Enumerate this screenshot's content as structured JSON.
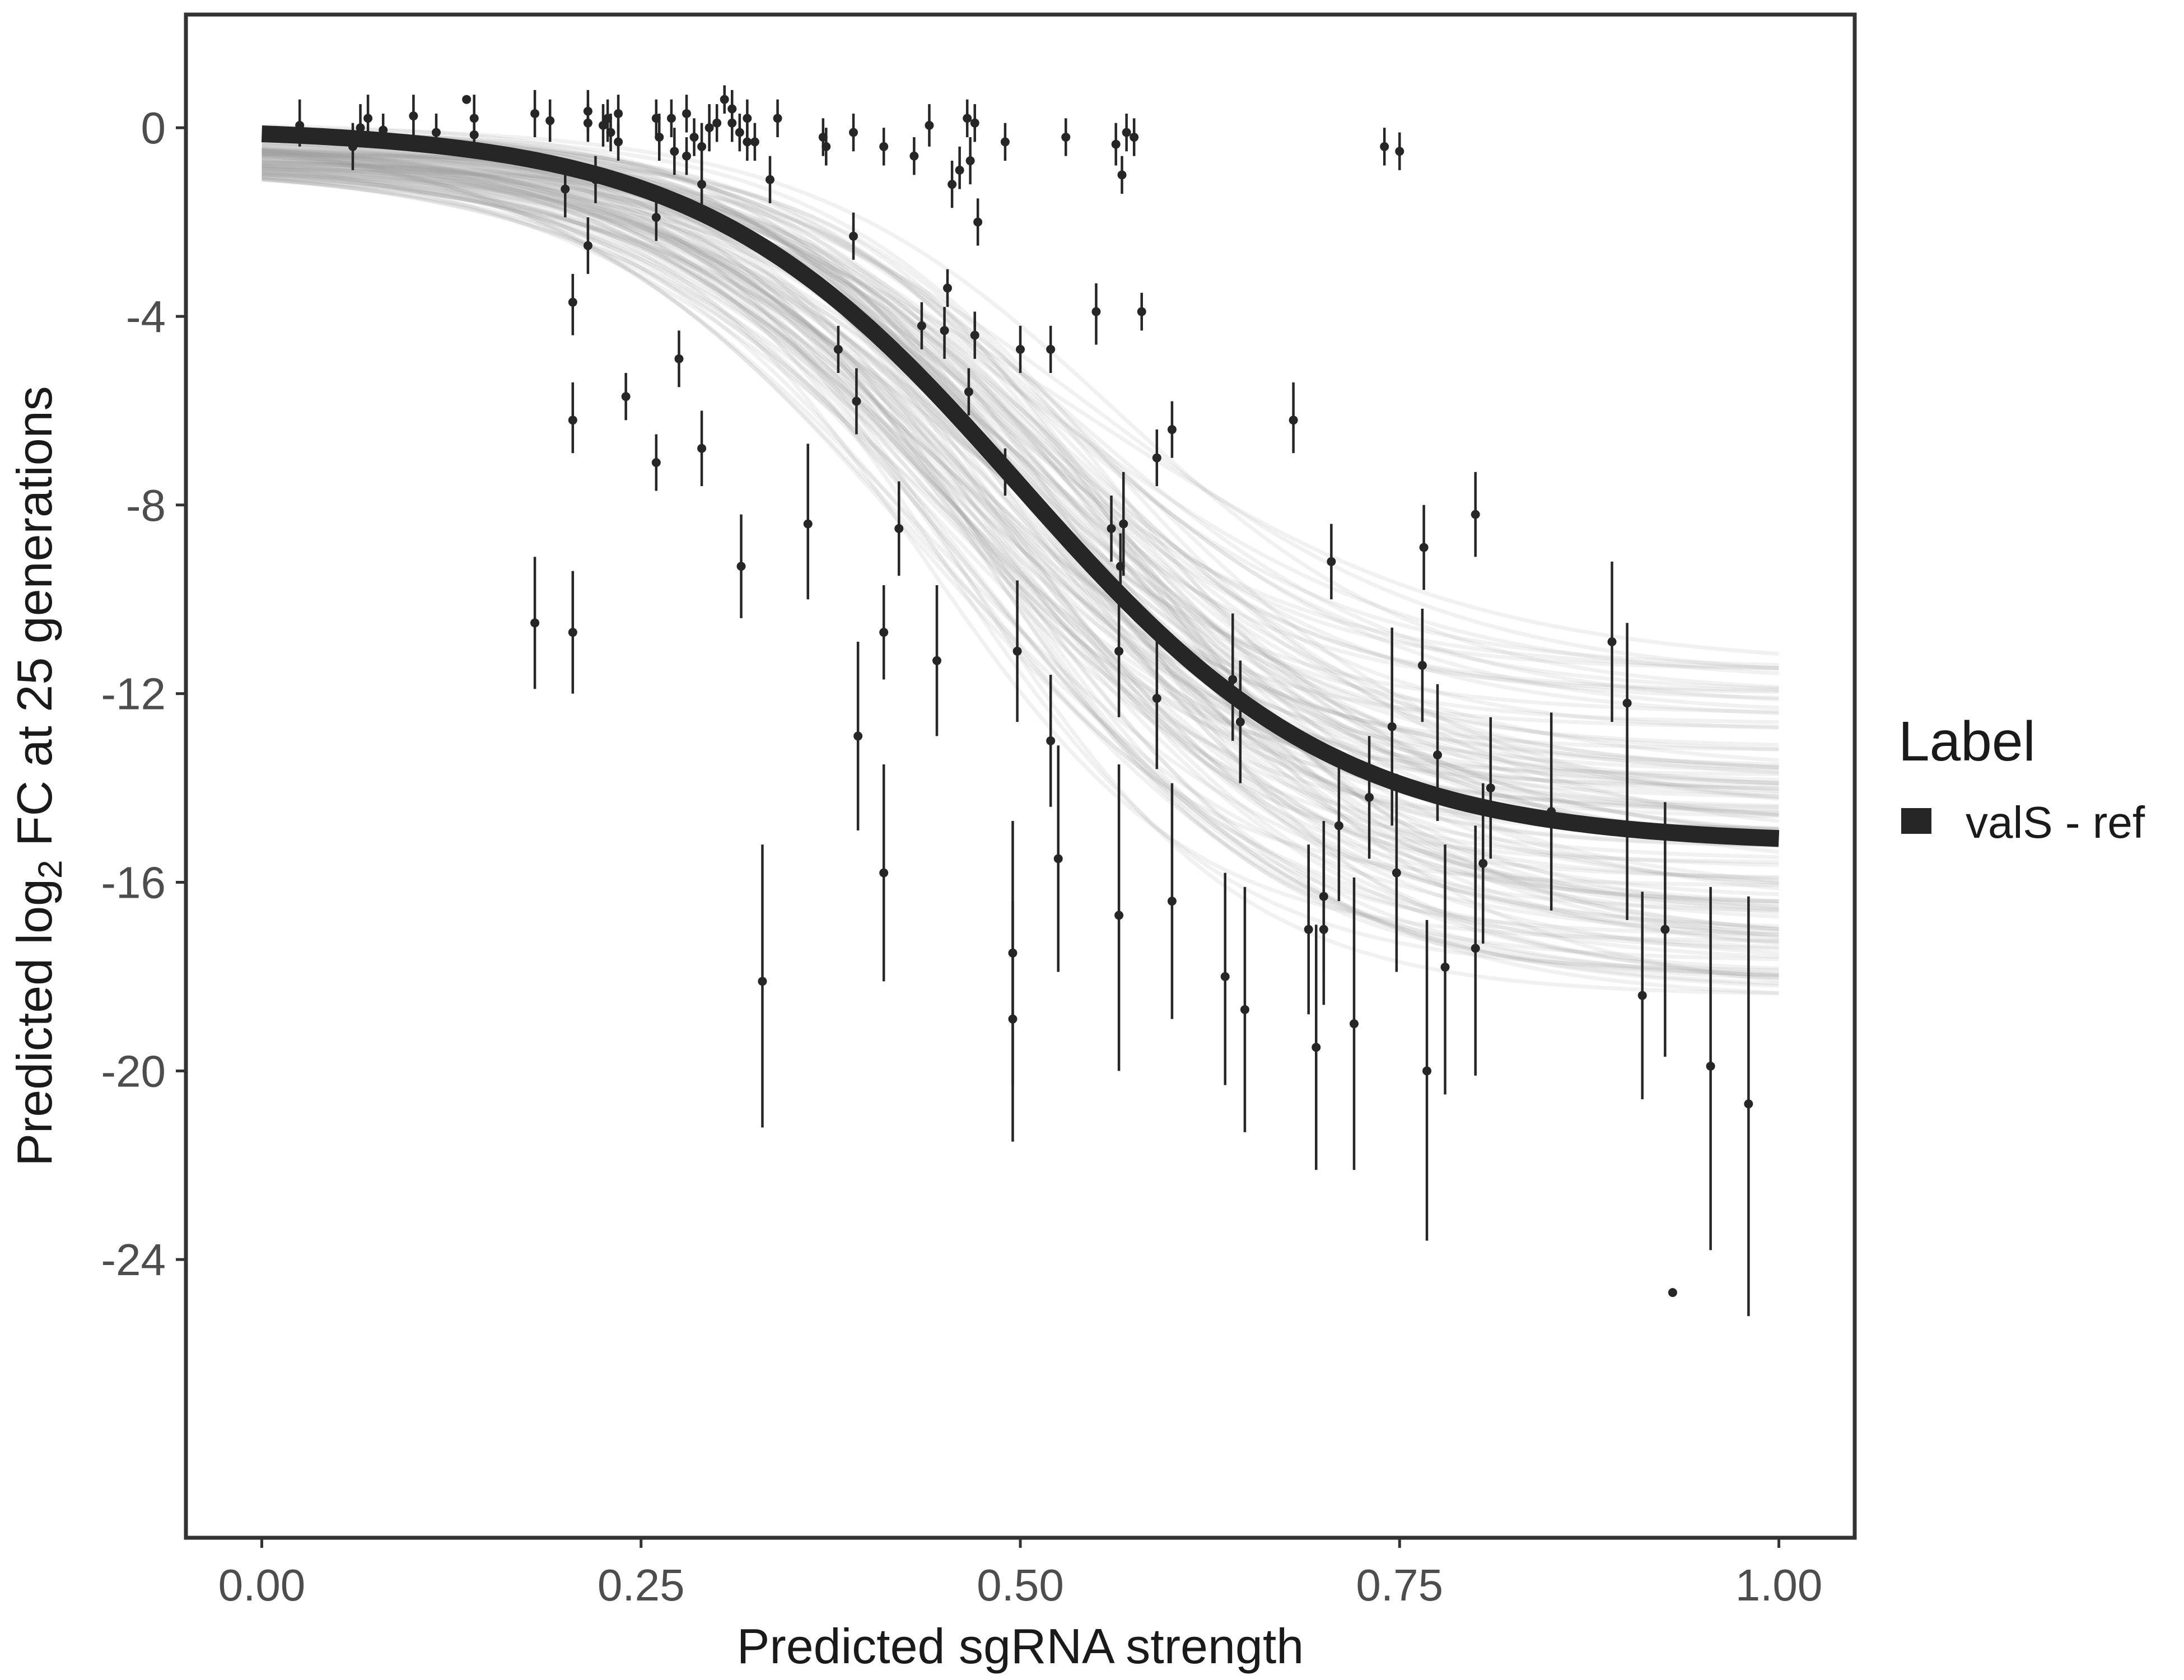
{
  "chart_data": {
    "type": "scatter",
    "xlabel": "Predicted sgRNA strength",
    "ylabel_parts": [
      "Predicted  log",
      "2",
      " FC at 25 generations"
    ],
    "xlim": [
      -0.05,
      1.05
    ],
    "ylim": [
      -29.9,
      2.4
    ],
    "x_ticks": [
      0,
      0.25,
      0.5,
      0.75,
      1
    ],
    "x_tick_labels": [
      "0.00",
      "0.25",
      "0.50",
      "0.75",
      "1.00"
    ],
    "y_ticks": [
      0,
      -4,
      -8,
      -12,
      -16,
      -20,
      -24
    ],
    "y_tick_labels": [
      "0",
      "-4",
      "-8",
      "-12",
      "-16",
      "-20",
      "-24"
    ],
    "grid": false,
    "legend": {
      "title": "Label",
      "entries": [
        "valS - ref"
      ],
      "placement": "right"
    },
    "colors": {
      "fit": "#262626",
      "band": "#999999",
      "points": "#262626",
      "frame": "#333333"
    },
    "fit": {
      "series_name": "valS - ref",
      "model": "logistic",
      "min": -15.2,
      "max": 0,
      "midpoint": 0.5,
      "scale": 0.105,
      "x_range": [
        0,
        1
      ]
    },
    "band": {
      "draws": 120,
      "lower_end": -18.5,
      "upper_end": -11.2
    },
    "points": [
      {
        "x": 0.025,
        "y": 0.05,
        "lo": -0.4,
        "hi": 0.6
      },
      {
        "x": 0.06,
        "y": -0.4,
        "lo": -0.9,
        "hi": 0.1
      },
      {
        "x": 0.065,
        "y": 0.0,
        "lo": -0.4,
        "hi": 0.5
      },
      {
        "x": 0.07,
        "y": 0.2,
        "lo": -0.3,
        "hi": 0.7
      },
      {
        "x": 0.08,
        "y": -0.05,
        "lo": -0.4,
        "hi": 0.3
      },
      {
        "x": 0.1,
        "y": 0.25,
        "lo": -0.2,
        "hi": 0.7
      },
      {
        "x": 0.115,
        "y": -0.1,
        "lo": -0.5,
        "hi": 0.3
      },
      {
        "x": 0.135,
        "y": 0.6,
        "lo": 0.6,
        "hi": 0.6
      },
      {
        "x": 0.14,
        "y": 0.2,
        "lo": -0.3,
        "hi": 0.7
      },
      {
        "x": 0.14,
        "y": -0.15,
        "lo": -0.6,
        "hi": 0.3
      },
      {
        "x": 0.18,
        "y": -10.5,
        "lo": -11.9,
        "hi": -9.1
      },
      {
        "x": 0.18,
        "y": 0.3,
        "lo": -0.2,
        "hi": 0.8
      },
      {
        "x": 0.19,
        "y": 0.15,
        "lo": -0.3,
        "hi": 0.6
      },
      {
        "x": 0.2,
        "y": -1.3,
        "lo": -1.9,
        "hi": -0.8
      },
      {
        "x": 0.205,
        "y": -10.7,
        "lo": -12.0,
        "hi": -9.4
      },
      {
        "x": 0.205,
        "y": -3.7,
        "lo": -4.4,
        "hi": -3.1
      },
      {
        "x": 0.205,
        "y": -6.2,
        "lo": -6.9,
        "hi": -5.4
      },
      {
        "x": 0.215,
        "y": 0.35,
        "lo": -0.1,
        "hi": 0.8
      },
      {
        "x": 0.215,
        "y": 0.1,
        "lo": -0.3,
        "hi": 0.5
      },
      {
        "x": 0.215,
        "y": -2.5,
        "lo": -3.1,
        "hi": -1.9
      },
      {
        "x": 0.22,
        "y": -1.1,
        "lo": -1.6,
        "hi": -0.6
      },
      {
        "x": 0.225,
        "y": 0.05,
        "lo": -0.4,
        "hi": 0.5
      },
      {
        "x": 0.228,
        "y": 0.2,
        "lo": -0.3,
        "hi": 0.6
      },
      {
        "x": 0.23,
        "y": -0.1,
        "lo": -0.5,
        "hi": 0.3
      },
      {
        "x": 0.235,
        "y": -0.3,
        "lo": -0.7,
        "hi": 0.1
      },
      {
        "x": 0.235,
        "y": 0.3,
        "lo": -0.1,
        "hi": 0.7
      },
      {
        "x": 0.24,
        "y": -5.7,
        "lo": -6.2,
        "hi": -5.2
      },
      {
        "x": 0.26,
        "y": -7.1,
        "lo": -7.7,
        "hi": -6.5
      },
      {
        "x": 0.26,
        "y": -1.9,
        "lo": -2.4,
        "hi": -1.4
      },
      {
        "x": 0.26,
        "y": 0.2,
        "lo": -0.2,
        "hi": 0.6
      },
      {
        "x": 0.262,
        "y": -0.2,
        "lo": -0.7,
        "hi": 0.3
      },
      {
        "x": 0.27,
        "y": 0.2,
        "lo": -0.2,
        "hi": 0.6
      },
      {
        "x": 0.272,
        "y": -0.5,
        "lo": -1.0,
        "hi": 0.0
      },
      {
        "x": 0.275,
        "y": -4.9,
        "lo": -5.5,
        "hi": -4.3
      },
      {
        "x": 0.28,
        "y": 0.3,
        "lo": -0.1,
        "hi": 0.7
      },
      {
        "x": 0.28,
        "y": -0.6,
        "lo": -1.0,
        "hi": -0.2
      },
      {
        "x": 0.285,
        "y": -0.2,
        "lo": -0.6,
        "hi": 0.2
      },
      {
        "x": 0.29,
        "y": -0.4,
        "lo": -0.9,
        "hi": 0.1
      },
      {
        "x": 0.29,
        "y": -1.2,
        "lo": -1.7,
        "hi": -0.7
      },
      {
        "x": 0.29,
        "y": -6.8,
        "lo": -7.6,
        "hi": -6.0
      },
      {
        "x": 0.295,
        "y": 0.0,
        "lo": -0.5,
        "hi": 0.5
      },
      {
        "x": 0.3,
        "y": 0.1,
        "lo": -0.3,
        "hi": 0.5
      },
      {
        "x": 0.305,
        "y": 0.6,
        "lo": 0.3,
        "hi": 0.9
      },
      {
        "x": 0.31,
        "y": 0.4,
        "lo": 0.0,
        "hi": 0.8
      },
      {
        "x": 0.31,
        "y": 0.1,
        "lo": -0.3,
        "hi": 0.5
      },
      {
        "x": 0.315,
        "y": -0.1,
        "lo": -0.5,
        "hi": 0.3
      },
      {
        "x": 0.316,
        "y": -9.3,
        "lo": -10.4,
        "hi": -8.2
      },
      {
        "x": 0.32,
        "y": 0.2,
        "lo": -0.2,
        "hi": 0.6
      },
      {
        "x": 0.32,
        "y": -0.3,
        "lo": -0.7,
        "hi": 0.1
      },
      {
        "x": 0.325,
        "y": -0.3,
        "lo": -0.7,
        "hi": 0.1
      },
      {
        "x": 0.33,
        "y": -18.1,
        "lo": -21.2,
        "hi": -15.2
      },
      {
        "x": 0.335,
        "y": -1.1,
        "lo": -1.6,
        "hi": -0.6
      },
      {
        "x": 0.34,
        "y": 0.2,
        "lo": -0.2,
        "hi": 0.6
      },
      {
        "x": 0.36,
        "y": -8.4,
        "lo": -10.0,
        "hi": -6.7
      },
      {
        "x": 0.37,
        "y": -0.2,
        "lo": -0.6,
        "hi": 0.2
      },
      {
        "x": 0.372,
        "y": -0.4,
        "lo": -0.8,
        "hi": 0.0
      },
      {
        "x": 0.38,
        "y": -4.7,
        "lo": -5.2,
        "hi": -4.2
      },
      {
        "x": 0.39,
        "y": -2.3,
        "lo": -2.8,
        "hi": -1.8
      },
      {
        "x": 0.39,
        "y": -0.1,
        "lo": -0.5,
        "hi": 0.3
      },
      {
        "x": 0.392,
        "y": -5.8,
        "lo": -6.5,
        "hi": -5.1
      },
      {
        "x": 0.393,
        "y": -12.9,
        "lo": -14.9,
        "hi": -10.9
      },
      {
        "x": 0.41,
        "y": -0.4,
        "lo": -0.8,
        "hi": 0.0
      },
      {
        "x": 0.41,
        "y": -10.7,
        "lo": -11.7,
        "hi": -9.7
      },
      {
        "x": 0.41,
        "y": -15.8,
        "lo": -18.1,
        "hi": -13.5
      },
      {
        "x": 0.42,
        "y": -8.5,
        "lo": -9.5,
        "hi": -7.5
      },
      {
        "x": 0.43,
        "y": -0.6,
        "lo": -1.0,
        "hi": -0.2
      },
      {
        "x": 0.435,
        "y": -4.2,
        "lo": -4.7,
        "hi": -3.7
      },
      {
        "x": 0.44,
        "y": 0.05,
        "lo": -0.4,
        "hi": 0.5
      },
      {
        "x": 0.445,
        "y": -11.3,
        "lo": -12.9,
        "hi": -9.7
      },
      {
        "x": 0.45,
        "y": -4.3,
        "lo": -4.9,
        "hi": -3.8
      },
      {
        "x": 0.452,
        "y": -3.4,
        "lo": -3.8,
        "hi": -3.0
      },
      {
        "x": 0.455,
        "y": -1.2,
        "lo": -1.7,
        "hi": -0.7
      },
      {
        "x": 0.46,
        "y": -0.9,
        "lo": -1.3,
        "hi": -0.4
      },
      {
        "x": 0.465,
        "y": 0.2,
        "lo": -0.2,
        "hi": 0.6
      },
      {
        "x": 0.466,
        "y": -5.6,
        "lo": -6.1,
        "hi": -5.1
      },
      {
        "x": 0.467,
        "y": -0.7,
        "lo": -1.2,
        "hi": -0.2
      },
      {
        "x": 0.47,
        "y": 0.1,
        "lo": -0.3,
        "hi": 0.5
      },
      {
        "x": 0.47,
        "y": -4.4,
        "lo": -4.9,
        "hi": -3.9
      },
      {
        "x": 0.472,
        "y": -2.0,
        "lo": -2.5,
        "hi": -1.5
      },
      {
        "x": 0.49,
        "y": -7.3,
        "lo": -7.8,
        "hi": -6.8
      },
      {
        "x": 0.49,
        "y": -0.3,
        "lo": -0.7,
        "hi": 0.1
      },
      {
        "x": 0.495,
        "y": -17.5,
        "lo": -20.3,
        "hi": -14.7
      },
      {
        "x": 0.495,
        "y": -18.9,
        "lo": -21.5,
        "hi": -16.4
      },
      {
        "x": 0.498,
        "y": -11.1,
        "lo": -12.6,
        "hi": -9.6
      },
      {
        "x": 0.5,
        "y": -4.7,
        "lo": -5.2,
        "hi": -4.2
      },
      {
        "x": 0.52,
        "y": -13.0,
        "lo": -14.4,
        "hi": -11.6
      },
      {
        "x": 0.52,
        "y": -4.7,
        "lo": -5.2,
        "hi": -4.2
      },
      {
        "x": 0.525,
        "y": -15.5,
        "lo": -17.9,
        "hi": -13.1
      },
      {
        "x": 0.53,
        "y": -0.2,
        "lo": -0.6,
        "hi": 0.2
      },
      {
        "x": 0.55,
        "y": -3.9,
        "lo": -4.6,
        "hi": -3.3
      },
      {
        "x": 0.56,
        "y": -8.5,
        "lo": -9.2,
        "hi": -7.8
      },
      {
        "x": 0.563,
        "y": -0.35,
        "lo": -0.8,
        "hi": 0.1
      },
      {
        "x": 0.565,
        "y": -16.7,
        "lo": -20.0,
        "hi": -13.5
      },
      {
        "x": 0.565,
        "y": -11.1,
        "lo": -12.5,
        "hi": -9.8
      },
      {
        "x": 0.566,
        "y": -9.3,
        "lo": -10.0,
        "hi": -8.6
      },
      {
        "x": 0.567,
        "y": -1.0,
        "lo": -1.4,
        "hi": -0.6
      },
      {
        "x": 0.568,
        "y": -8.4,
        "lo": -9.5,
        "hi": -7.3
      },
      {
        "x": 0.57,
        "y": -0.1,
        "lo": -0.5,
        "hi": 0.3
      },
      {
        "x": 0.575,
        "y": -0.2,
        "lo": -0.6,
        "hi": 0.2
      },
      {
        "x": 0.58,
        "y": -3.9,
        "lo": -4.3,
        "hi": -3.5
      },
      {
        "x": 0.59,
        "y": -7.0,
        "lo": -7.6,
        "hi": -6.4
      },
      {
        "x": 0.59,
        "y": -12.1,
        "lo": -13.6,
        "hi": -10.6
      },
      {
        "x": 0.6,
        "y": -16.4,
        "lo": -18.9,
        "hi": -13.9
      },
      {
        "x": 0.6,
        "y": -6.4,
        "lo": -7.0,
        "hi": -5.8
      },
      {
        "x": 0.635,
        "y": -18.0,
        "lo": -20.3,
        "hi": -15.8
      },
      {
        "x": 0.64,
        "y": -11.7,
        "lo": -13.0,
        "hi": -10.3
      },
      {
        "x": 0.645,
        "y": -12.6,
        "lo": -13.9,
        "hi": -11.3
      },
      {
        "x": 0.648,
        "y": -18.7,
        "lo": -21.3,
        "hi": -16.1
      },
      {
        "x": 0.68,
        "y": -6.2,
        "lo": -6.9,
        "hi": -5.4
      },
      {
        "x": 0.69,
        "y": -17.0,
        "lo": -18.8,
        "hi": -15.2
      },
      {
        "x": 0.695,
        "y": -19.5,
        "lo": -22.1,
        "hi": -16.9
      },
      {
        "x": 0.7,
        "y": -16.3,
        "lo": -17.9,
        "hi": -14.7
      },
      {
        "x": 0.7,
        "y": -17.0,
        "lo": -18.6,
        "hi": -15.4
      },
      {
        "x": 0.705,
        "y": -9.2,
        "lo": -10.0,
        "hi": -8.4
      },
      {
        "x": 0.71,
        "y": -14.8,
        "lo": -16.4,
        "hi": -13.2
      },
      {
        "x": 0.72,
        "y": -19.0,
        "lo": -22.1,
        "hi": -15.9
      },
      {
        "x": 0.73,
        "y": -14.2,
        "lo": -15.5,
        "hi": -12.9
      },
      {
        "x": 0.74,
        "y": -0.4,
        "lo": -0.8,
        "hi": 0.0
      },
      {
        "x": 0.745,
        "y": -12.7,
        "lo": -14.8,
        "hi": -10.6
      },
      {
        "x": 0.748,
        "y": -15.8,
        "lo": -17.9,
        "hi": -13.7
      },
      {
        "x": 0.75,
        "y": -0.5,
        "lo": -0.9,
        "hi": -0.1
      },
      {
        "x": 0.765,
        "y": -11.4,
        "lo": -12.6,
        "hi": -10.2
      },
      {
        "x": 0.766,
        "y": -8.9,
        "lo": -9.8,
        "hi": -8.0
      },
      {
        "x": 0.768,
        "y": -20.0,
        "lo": -23.6,
        "hi": -16.8
      },
      {
        "x": 0.775,
        "y": -13.3,
        "lo": -14.7,
        "hi": -11.8
      },
      {
        "x": 0.78,
        "y": -17.8,
        "lo": -20.5,
        "hi": -15.2
      },
      {
        "x": 0.8,
        "y": -8.2,
        "lo": -9.1,
        "hi": -7.3
      },
      {
        "x": 0.8,
        "y": -17.4,
        "lo": -20.1,
        "hi": -14.8
      },
      {
        "x": 0.805,
        "y": -15.6,
        "lo": -17.3,
        "hi": -13.9
      },
      {
        "x": 0.81,
        "y": -14.0,
        "lo": -15.5,
        "hi": -12.5
      },
      {
        "x": 0.85,
        "y": -14.5,
        "lo": -16.6,
        "hi": -12.4
      },
      {
        "x": 0.89,
        "y": -10.9,
        "lo": -12.6,
        "hi": -9.2
      },
      {
        "x": 0.9,
        "y": -12.2,
        "lo": -13.9,
        "hi": -10.5
      },
      {
        "x": 0.9,
        "y": -14.9,
        "lo": -16.8,
        "hi": -13.0
      },
      {
        "x": 0.91,
        "y": -18.4,
        "lo": -20.6,
        "hi": -16.2
      },
      {
        "x": 0.925,
        "y": -17.0,
        "lo": -19.7,
        "hi": -14.3
      },
      {
        "x": 0.93,
        "y": -24.7,
        "lo": -24.7,
        "hi": -24.7
      },
      {
        "x": 0.955,
        "y": -19.9,
        "lo": -23.8,
        "hi": -16.1
      },
      {
        "x": 0.98,
        "y": -20.7,
        "lo": -25.2,
        "hi": -16.3
      }
    ]
  }
}
